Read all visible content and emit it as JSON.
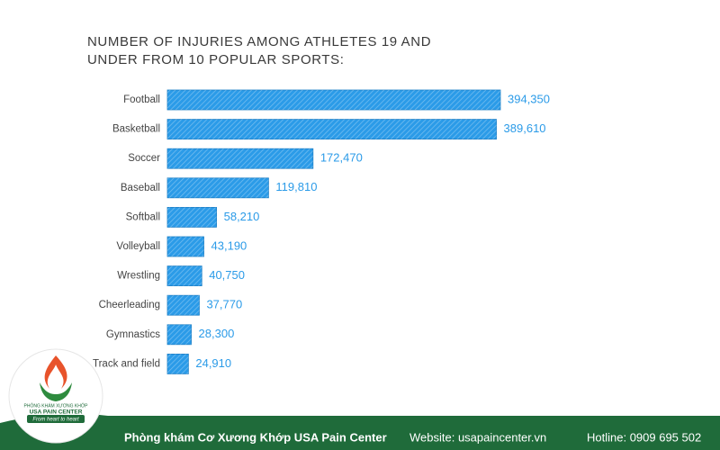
{
  "chart_data": {
    "type": "bar",
    "orientation": "horizontal",
    "title": "NUMBER OF INJURIES AMONG ATHLETES 19 AND UNDER FROM 10 POPULAR SPORTS:",
    "categories": [
      "Football",
      "Basketball",
      "Soccer",
      "Baseball",
      "Softball",
      "Volleyball",
      "Wrestling",
      "Cheerleading",
      "Gymnastics",
      "Track and field"
    ],
    "values": [
      394350,
      389610,
      172470,
      119810,
      58210,
      43190,
      40750,
      37770,
      28300,
      24910
    ],
    "value_labels": [
      "394,350",
      "389,610",
      "172,470",
      "119,810",
      "58,210",
      "43,190",
      "40,750",
      "37,770",
      "28,300",
      "24,910"
    ],
    "color": "#2b9be8"
  },
  "logo": {
    "line1": "PHÒNG KHÁM XƯƠNG KHỚP",
    "line2": "USA PAIN CENTER",
    "tagline": "From heart to heart"
  },
  "footer": {
    "clinic": "Phòng khám Cơ Xương Khớp USA Pain Center",
    "website": "Website: usapaincenter.vn",
    "hotline": "Hotline: 0909 695 502"
  }
}
